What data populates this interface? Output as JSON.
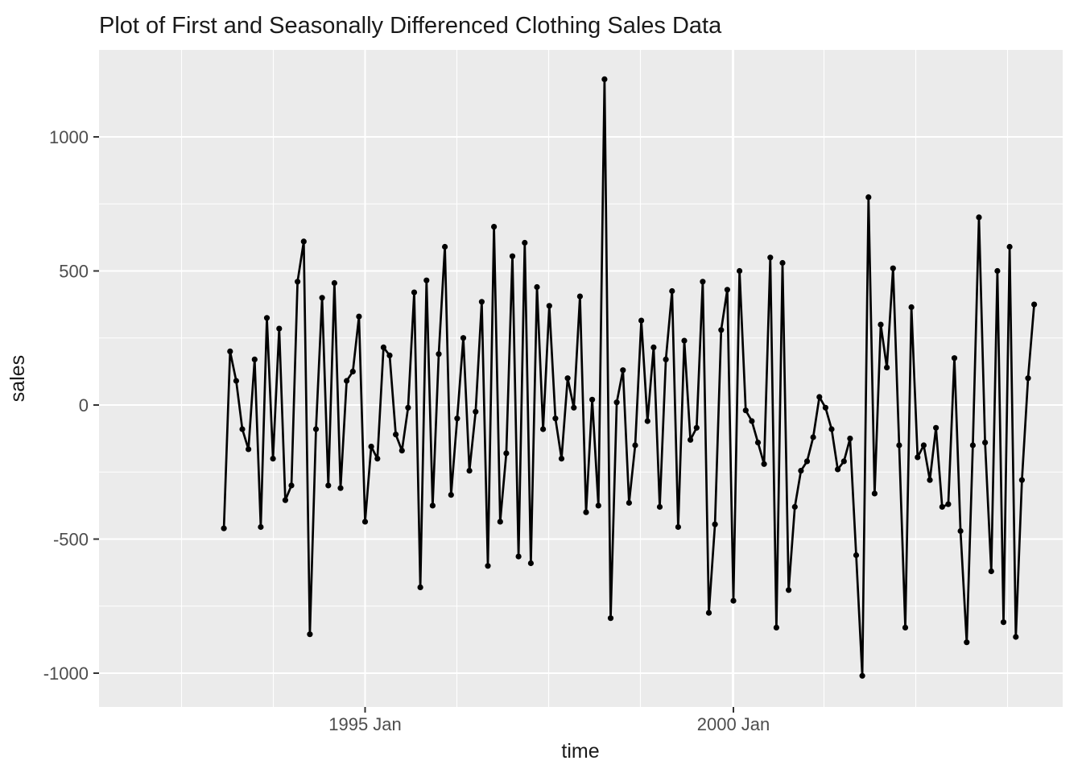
{
  "title": "Plot of First and Seasonally Differenced Clothing Sales Data",
  "colors": {
    "panel_bg": "#ebebeb",
    "grid_major": "#ffffff",
    "grid_minor": "#ffffff",
    "series": "#000000",
    "tick_mark": "#333333",
    "tick_text": "#4d4d4d",
    "title_text": "#1a1a1a"
  },
  "chart_data": {
    "type": "line",
    "title": "Plot of First and Seasonally Differenced Clothing Sales Data",
    "xlabel": "time",
    "ylabel": "sales",
    "legend": "none",
    "grid": "on",
    "marker": "point",
    "x_tick_labels": [
      "1995 Jan",
      "2000 Jan"
    ],
    "x_tick_months": [
      "1995-01",
      "2000-01"
    ],
    "y_ticks": [
      1000,
      500,
      0,
      -500,
      -1000
    ],
    "y_minor_ticks": [
      750,
      250,
      -250,
      -750
    ],
    "ylim": [
      -1126,
      1324
    ],
    "start": "1993-02",
    "frequency": "monthly",
    "x": [
      "1993-02",
      "1993-03",
      "1993-04",
      "1993-05",
      "1993-06",
      "1993-07",
      "1993-08",
      "1993-09",
      "1993-10",
      "1993-11",
      "1993-12",
      "1994-01",
      "1994-02",
      "1994-03",
      "1994-04",
      "1994-05",
      "1994-06",
      "1994-07",
      "1994-08",
      "1994-09",
      "1994-10",
      "1994-11",
      "1994-12",
      "1995-01",
      "1995-02",
      "1995-03",
      "1995-04",
      "1995-05",
      "1995-06",
      "1995-07",
      "1995-08",
      "1995-09",
      "1995-10",
      "1995-11",
      "1995-12",
      "1996-01",
      "1996-02",
      "1996-03",
      "1996-04",
      "1996-05",
      "1996-06",
      "1996-07",
      "1996-08",
      "1996-09",
      "1996-10",
      "1996-11",
      "1996-12",
      "1997-01",
      "1997-02",
      "1997-03",
      "1997-04",
      "1997-05",
      "1997-06",
      "1997-07",
      "1997-08",
      "1997-09",
      "1997-10",
      "1997-11",
      "1997-12",
      "1998-01",
      "1998-02",
      "1998-03",
      "1998-04",
      "1998-05",
      "1998-06",
      "1998-07",
      "1998-08",
      "1998-09",
      "1998-10",
      "1998-11",
      "1998-12",
      "1999-01",
      "1999-02",
      "1999-03",
      "1999-04",
      "1999-05",
      "1999-06",
      "1999-07",
      "1999-08",
      "1999-09",
      "1999-10",
      "1999-11",
      "1999-12",
      "2000-01",
      "2000-02",
      "2000-03",
      "2000-04",
      "2000-05",
      "2000-06",
      "2000-07",
      "2000-08",
      "2000-09",
      "2000-10",
      "2000-11",
      "2000-12",
      "2001-01",
      "2001-02",
      "2001-03",
      "2001-04",
      "2001-05",
      "2001-06",
      "2001-07",
      "2001-08",
      "2001-09",
      "2001-10",
      "2001-11",
      "2001-12",
      "2002-01",
      "2002-02",
      "2002-03",
      "2002-04",
      "2002-05",
      "2002-06",
      "2002-07",
      "2002-08",
      "2002-09",
      "2002-10",
      "2002-11",
      "2002-12",
      "2003-01",
      "2003-02",
      "2003-03",
      "2003-04",
      "2003-05",
      "2003-06",
      "2003-07",
      "2003-08",
      "2003-09",
      "2003-10",
      "2003-11",
      "2003-12",
      "2004-01",
      "2004-02"
    ],
    "values": [
      -460,
      200,
      90,
      -90,
      -165,
      170,
      -455,
      325,
      -200,
      285,
      -355,
      -300,
      460,
      610,
      -855,
      -90,
      400,
      -300,
      455,
      -310,
      90,
      125,
      330,
      -435,
      -155,
      -200,
      215,
      185,
      -110,
      -170,
      -10,
      420,
      -680,
      465,
      -375,
      190,
      590,
      -335,
      -50,
      250,
      -245,
      -25,
      385,
      -600,
      665,
      -435,
      -180,
      555,
      -565,
      605,
      -590,
      440,
      -90,
      370,
      -50,
      -200,
      100,
      -10,
      405,
      -400,
      20,
      -375,
      1215,
      -795,
      10,
      130,
      -365,
      -150,
      315,
      -60,
      215,
      -380,
      170,
      425,
      -455,
      240,
      -130,
      -85,
      460,
      -775,
      -445,
      280,
      430,
      -730,
      500,
      -20,
      -60,
      -140,
      -220,
      550,
      -830,
      530,
      -690,
      -380,
      -245,
      -210,
      -120,
      30,
      -10,
      -90,
      -240,
      -210,
      -125,
      -560,
      -1010,
      775,
      -330,
      300,
      140,
      510,
      -150,
      -830,
      365,
      -195,
      -150,
      -280,
      -85,
      -380,
      -370,
      175,
      -470,
      -885,
      -150,
      700,
      -140,
      -620,
      500,
      -810,
      590,
      -865,
      -280,
      100,
      375
    ]
  }
}
